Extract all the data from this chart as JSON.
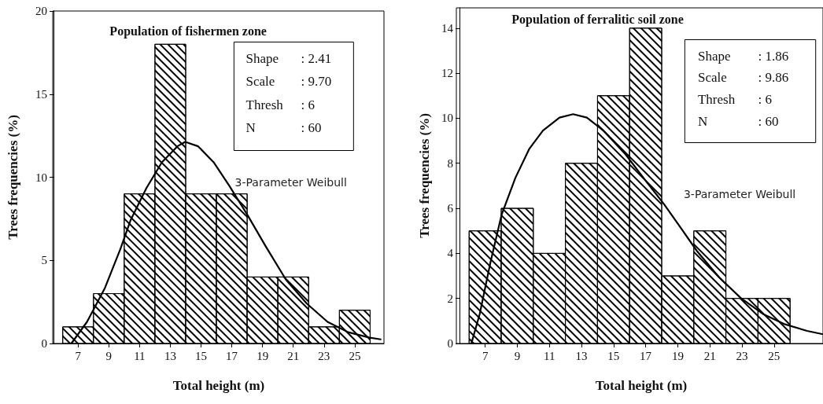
{
  "chart_data": [
    {
      "type": "histogram",
      "title": "Population of fishermen zone",
      "xlabel": "Total height (m)",
      "ylabel": "Trees frequencies (%)",
      "bins": [
        6,
        8,
        10,
        12,
        14,
        16,
        18,
        20,
        22,
        24,
        26
      ],
      "values": [
        1,
        3,
        9,
        18,
        9,
        9,
        4,
        4,
        1,
        2
      ],
      "color": "#ffffff",
      "xlim": [
        5.4,
        26.9
      ],
      "xticks": [
        7,
        9,
        11,
        13,
        15,
        17,
        19,
        21,
        23,
        25
      ],
      "ylim": [
        0,
        20
      ],
      "yticks": [
        0,
        5,
        10,
        15,
        20
      ],
      "grid": false,
      "series": [
        {
          "type": "line",
          "color": "#000000",
          "x": [
            6.56,
            7.58,
            8.75,
            9.76,
            10.43,
            11.44,
            12.45,
            13.46,
            13.97,
            14.81,
            15.82,
            16.83,
            18.0,
            19.19,
            20.53,
            21.88,
            23.23,
            24.57,
            25.92,
            26.68
          ],
          "values": [
            0,
            1.3,
            3.35,
            5.7,
            7.45,
            9.34,
            10.9,
            11.86,
            12.13,
            11.86,
            10.9,
            9.5,
            7.76,
            5.87,
            3.83,
            2.4,
            1.3,
            0.68,
            0.36,
            0.25
          ]
        }
      ],
      "annotations": [
        "Shape",
        ": 2.41",
        "Scale",
        ": 9.70",
        "Thresh",
        ": 6",
        "N",
        ": 60",
        "3-Parameter Weibull"
      ]
    },
    {
      "type": "histogram",
      "title": "Population of ferralitic soil zone",
      "xlabel": "Total height (m)",
      "ylabel": "Trees frequencies (%)",
      "bins": [
        6,
        8,
        10,
        12,
        14,
        16,
        18,
        20,
        22,
        24,
        26
      ],
      "values": [
        5,
        6,
        4,
        8,
        11,
        14,
        3,
        5,
        2,
        2
      ],
      "color": "#ffffff",
      "xlim": [
        5.4,
        28.05
      ],
      "xticks": [
        7,
        9,
        11,
        13,
        15,
        17,
        19,
        21,
        23,
        25
      ],
      "ylim": [
        0,
        14.9
      ],
      "yticks": [
        0,
        2,
        4,
        6,
        8,
        10,
        12,
        14
      ],
      "grid": false,
      "series": [
        {
          "type": "line",
          "color": "#000000",
          "x": [
            6.14,
            6.66,
            7.34,
            8.03,
            8.88,
            9.74,
            10.6,
            11.63,
            12.48,
            13.34,
            14.37,
            15.74,
            17.11,
            18.14,
            19.17,
            20.2,
            21.57,
            22.94,
            24.31,
            25.69,
            27.06,
            28.05
          ],
          "values": [
            0,
            1.31,
            3.64,
            5.73,
            7.35,
            8.63,
            9.45,
            10.03,
            10.18,
            10.03,
            9.45,
            8.4,
            7.12,
            6.19,
            5.15,
            4.1,
            2.94,
            2.01,
            1.31,
            0.85,
            0.56,
            0.41
          ]
        }
      ],
      "annotations": [
        "Shape",
        ": 1.86",
        "Scale",
        ": 9.86",
        "Thresh",
        ": 6",
        "N",
        ": 60",
        "3-Parameter Weibull"
      ]
    }
  ]
}
